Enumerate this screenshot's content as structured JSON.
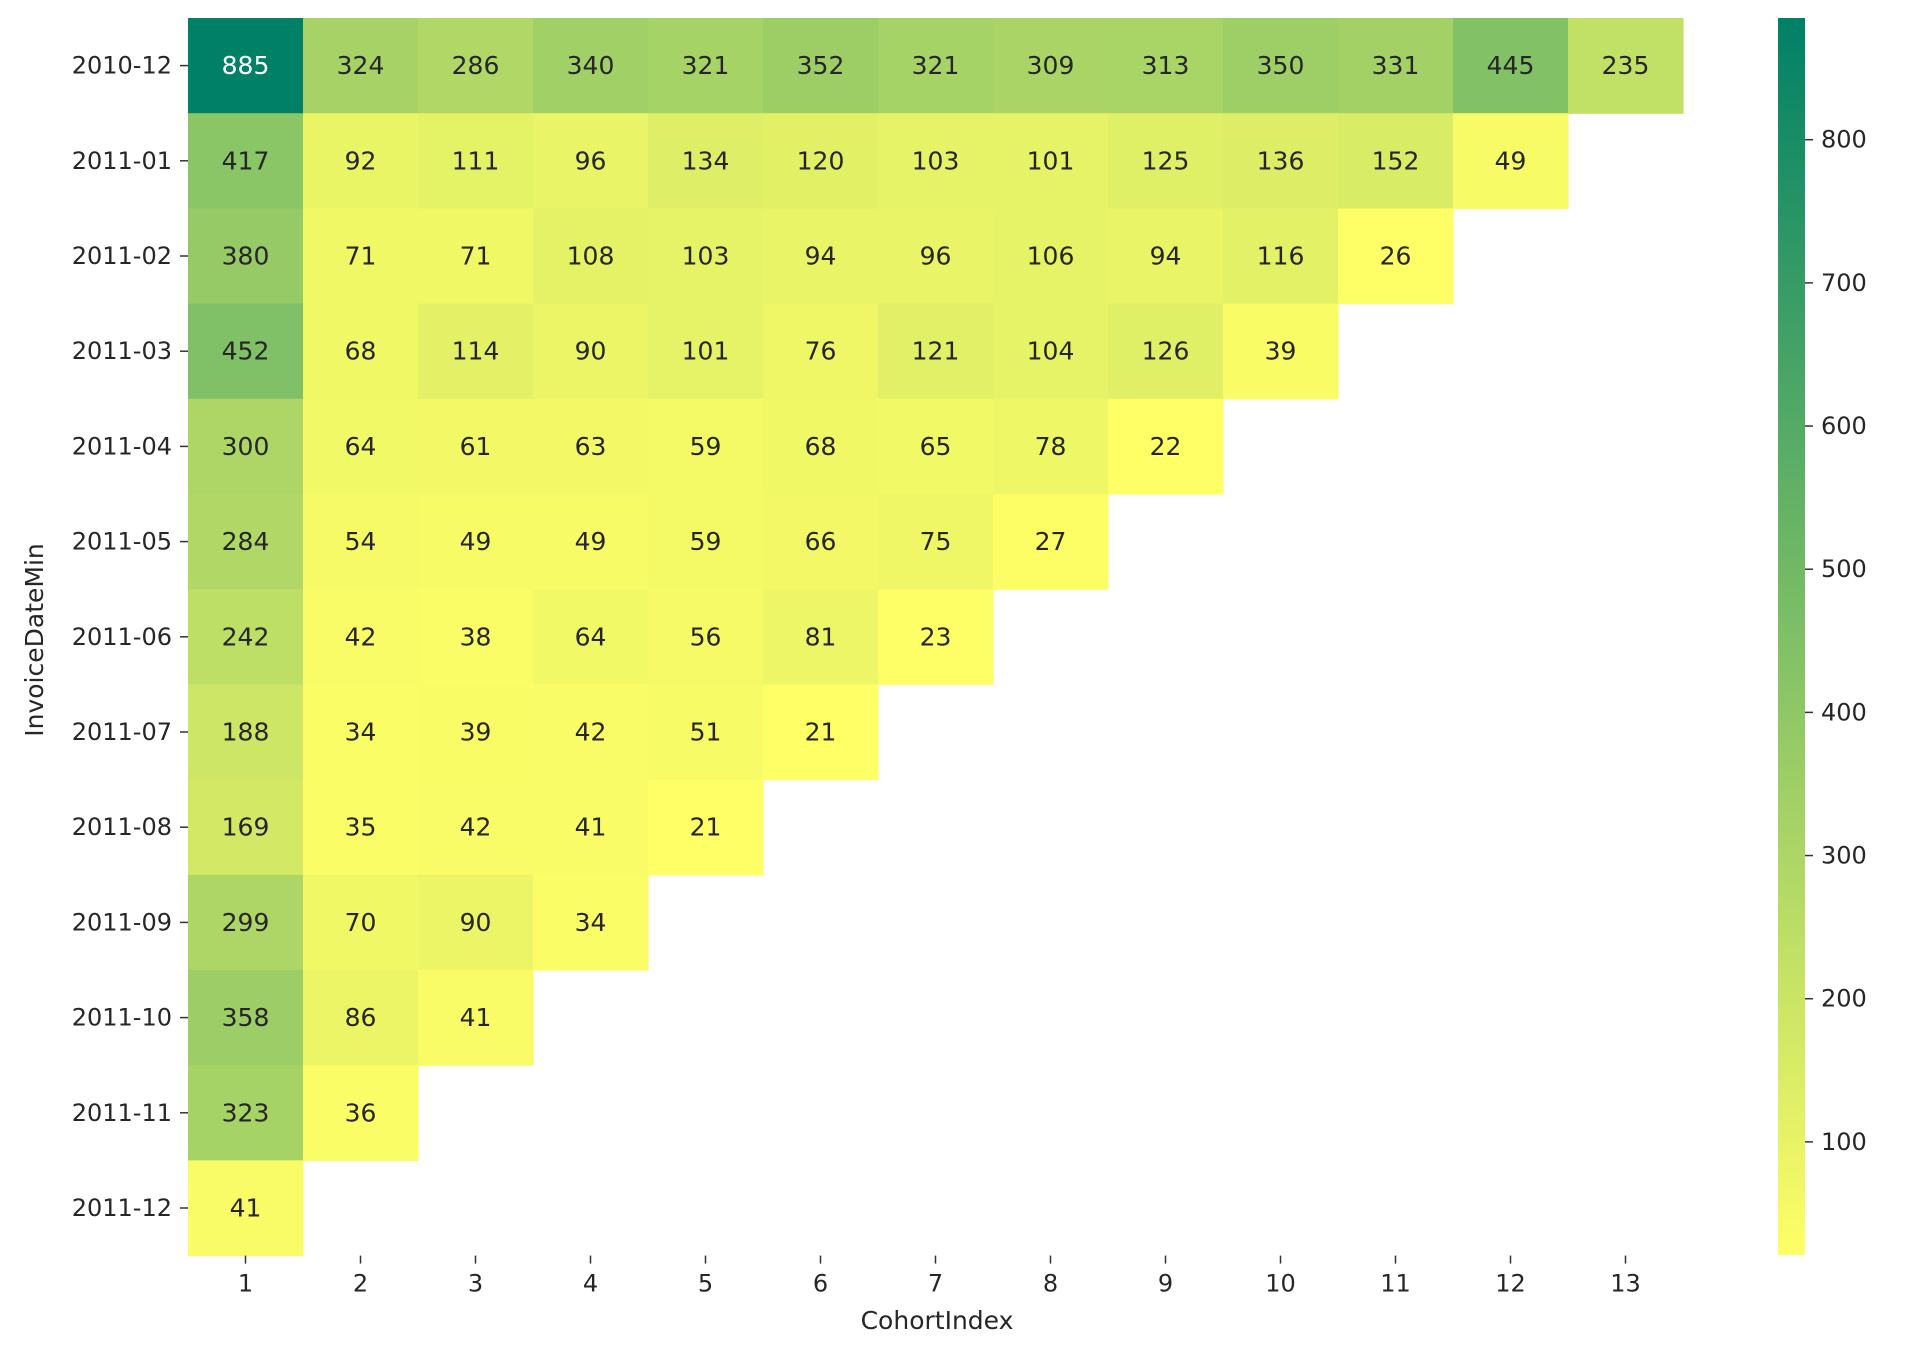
{
  "chart_data": {
    "type": "heatmap",
    "title": "",
    "xlabel": "CohortIndex",
    "ylabel": "InvoiceDateMin",
    "x_categories": [
      "1",
      "2",
      "3",
      "4",
      "5",
      "6",
      "7",
      "8",
      "9",
      "10",
      "11",
      "12",
      "13"
    ],
    "y_categories": [
      "2010-12",
      "2011-01",
      "2011-02",
      "2011-03",
      "2011-04",
      "2011-05",
      "2011-06",
      "2011-07",
      "2011-08",
      "2011-09",
      "2011-10",
      "2011-11",
      "2011-12"
    ],
    "values": [
      [
        885,
        324,
        286,
        340,
        321,
        352,
        321,
        309,
        313,
        350,
        331,
        445,
        235
      ],
      [
        417,
        92,
        111,
        96,
        134,
        120,
        103,
        101,
        125,
        136,
        152,
        49,
        null
      ],
      [
        380,
        71,
        71,
        108,
        103,
        94,
        96,
        106,
        94,
        116,
        26,
        null,
        null
      ],
      [
        452,
        68,
        114,
        90,
        101,
        76,
        121,
        104,
        126,
        39,
        null,
        null,
        null
      ],
      [
        300,
        64,
        61,
        63,
        59,
        68,
        65,
        78,
        22,
        null,
        null,
        null,
        null
      ],
      [
        284,
        54,
        49,
        49,
        59,
        66,
        75,
        27,
        null,
        null,
        null,
        null,
        null
      ],
      [
        242,
        42,
        38,
        64,
        56,
        81,
        23,
        null,
        null,
        null,
        null,
        null,
        null
      ],
      [
        188,
        34,
        39,
        42,
        51,
        21,
        null,
        null,
        null,
        null,
        null,
        null,
        null
      ],
      [
        169,
        35,
        42,
        41,
        21,
        null,
        null,
        null,
        null,
        null,
        null,
        null,
        null
      ],
      [
        299,
        70,
        90,
        34,
        null,
        null,
        null,
        null,
        null,
        null,
        null,
        null,
        null
      ],
      [
        358,
        86,
        41,
        null,
        null,
        null,
        null,
        null,
        null,
        null,
        null,
        null,
        null
      ],
      [
        323,
        36,
        null,
        null,
        null,
        null,
        null,
        null,
        null,
        null,
        null,
        null,
        null
      ],
      [
        41,
        null,
        null,
        null,
        null,
        null,
        null,
        null,
        null,
        null,
        null,
        null,
        null
      ]
    ],
    "colormap": "summer_r",
    "value_range": [
      21,
      885
    ],
    "colorbar_ticks": [
      100,
      200,
      300,
      400,
      500,
      600,
      700,
      800
    ],
    "colors": {
      "low": "#ffff66",
      "high": "#008066",
      "text_dark": "#262626",
      "text_light": "#ffffff"
    },
    "grid": false,
    "legend": "colorbar-right"
  }
}
